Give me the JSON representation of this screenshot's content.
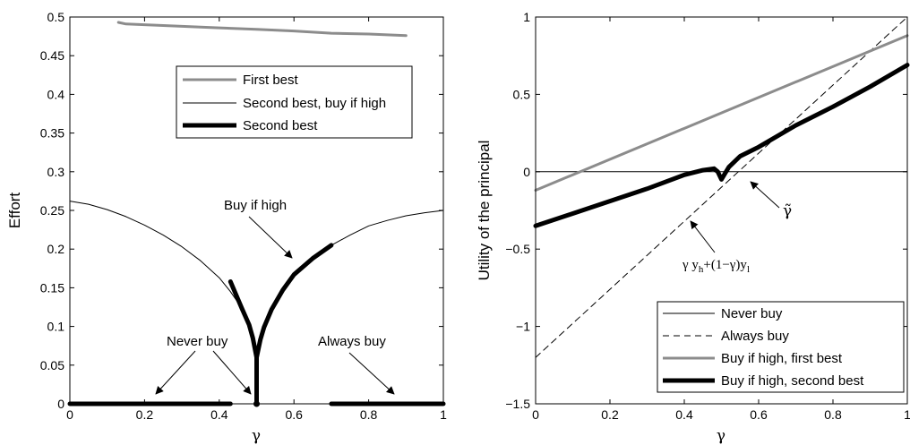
{
  "chart_data": [
    {
      "type": "line",
      "xlabel": "γ",
      "ylabel": "Effort",
      "xlim": [
        0,
        1
      ],
      "ylim": [
        0,
        0.5
      ],
      "xticks": [
        "0",
        "0.2",
        "0.4",
        "0.6",
        "0.8",
        "1"
      ],
      "yticks": [
        "0",
        "0.05",
        "0.1",
        "0.15",
        "0.2",
        "0.25",
        "0.3",
        "0.35",
        "0.4",
        "0.45",
        "0.5"
      ],
      "grid": false,
      "legend_position": "top-right",
      "legend": [
        "First best",
        "Second best, buy if high",
        "Second best"
      ],
      "series": [
        {
          "name": "First best",
          "color": "#8c8c8c",
          "x": [
            0.13,
            0.15,
            0.2,
            0.3,
            0.4,
            0.5,
            0.6,
            0.7,
            0.8,
            0.9
          ],
          "y": [
            0.493,
            0.491,
            0.49,
            0.488,
            0.486,
            0.484,
            0.482,
            0.479,
            0.478,
            0.476
          ]
        },
        {
          "name": "Second best, buy if high",
          "color": "#000000",
          "x": [
            0,
            0.05,
            0.1,
            0.15,
            0.2,
            0.25,
            0.3,
            0.35,
            0.4,
            0.43,
            0.46,
            0.48,
            0.49,
            0.5,
            0.51,
            0.52,
            0.54,
            0.57,
            0.6,
            0.65,
            0.7,
            0.75,
            0.8,
            0.85,
            0.9,
            0.95,
            1.0
          ],
          "y": [
            0.262,
            0.258,
            0.251,
            0.242,
            0.231,
            0.218,
            0.203,
            0.185,
            0.163,
            0.145,
            0.124,
            0.102,
            0.085,
            0.06,
            0.083,
            0.099,
            0.122,
            0.147,
            0.167,
            0.188,
            0.205,
            0.218,
            0.23,
            0.237,
            0.243,
            0.247,
            0.25
          ]
        },
        {
          "name": "Second best",
          "color": "#000000",
          "segments": [
            {
              "x": [
                0,
                0.43
              ],
              "y": [
                0,
                0
              ]
            },
            {
              "x": [
                0.43,
                0.46,
                0.48,
                0.49,
                0.5,
                0.51,
                0.52,
                0.54,
                0.57,
                0.6,
                0.65,
                0.7
              ],
              "y": [
                0.158,
                0.124,
                0.102,
                0.085,
                0.06,
                0.083,
                0.099,
                0.122,
                0.147,
                0.167,
                0.188,
                0.205
              ]
            },
            {
              "x": [
                0.5,
                0.5
              ],
              "y": [
                0,
                0.06
              ]
            },
            {
              "x": [
                0.7,
                1.0
              ],
              "y": [
                0,
                0
              ]
            }
          ]
        }
      ],
      "annotations": [
        "Buy if high",
        "Never buy",
        "Always buy"
      ]
    },
    {
      "type": "line",
      "xlabel": "γ",
      "ylabel": "Utility of the principal",
      "xlim": [
        0,
        1
      ],
      "ylim": [
        -1.5,
        1
      ],
      "xticks": [
        "0",
        "0.2",
        "0.4",
        "0.6",
        "0.8",
        "1"
      ],
      "yticks": [
        "−1.5",
        "−1",
        "−0.5",
        "0",
        "0.5",
        "1"
      ],
      "grid": false,
      "legend_position": "bottom-right",
      "legend": [
        "Never buy",
        "Always buy",
        "Buy if high, first best",
        "Buy if high, second best"
      ],
      "series": [
        {
          "name": "Never buy",
          "color": "#000000",
          "x": [
            0,
            1
          ],
          "y": [
            0,
            0
          ]
        },
        {
          "name": "Always buy",
          "color": "#000000",
          "x": [
            0,
            1
          ],
          "y": [
            -1.2,
            1.0
          ]
        },
        {
          "name": "Buy if high, first best",
          "color": "#8c8c8c",
          "x": [
            0,
            1
          ],
          "y": [
            -0.12,
            0.88
          ]
        },
        {
          "name": "Buy if high, second best",
          "color": "#000000",
          "x": [
            0,
            0.1,
            0.2,
            0.3,
            0.4,
            0.45,
            0.48,
            0.49,
            0.5,
            0.51,
            0.52,
            0.55,
            0.6,
            0.7,
            0.8,
            0.9,
            1.0
          ],
          "y": [
            -0.35,
            -0.27,
            -0.19,
            -0.11,
            -0.02,
            0.01,
            0.02,
            0.0,
            -0.05,
            -0.01,
            0.03,
            0.1,
            0.16,
            0.3,
            0.42,
            0.55,
            0.69
          ]
        }
      ],
      "annotations": [
        "γ̃",
        "γ y_h + (1−γ) y_l"
      ]
    }
  ],
  "left": {
    "x_label": "γ",
    "y_label": "Effort",
    "legend": {
      "first_best": "First best",
      "second_best_buy_if_high": "Second best, buy if high",
      "second_best": "Second best"
    },
    "annotations": {
      "buy_if_high": "Buy if high",
      "never_buy": "Never buy",
      "always_buy": "Always buy"
    }
  },
  "right": {
    "x_label": "γ",
    "y_label": "Utility of the principal",
    "legend": {
      "never_buy": "Never buy",
      "always_buy": "Always buy",
      "first_best": "Buy if high, first best",
      "second_best": "Buy if high, second best"
    },
    "annotations": {
      "gamma_tilde": "γ̃",
      "formula_gamma": "γ y",
      "formula_h": "h",
      "formula_mid": "+(1−γ)y",
      "formula_l": "l"
    }
  }
}
